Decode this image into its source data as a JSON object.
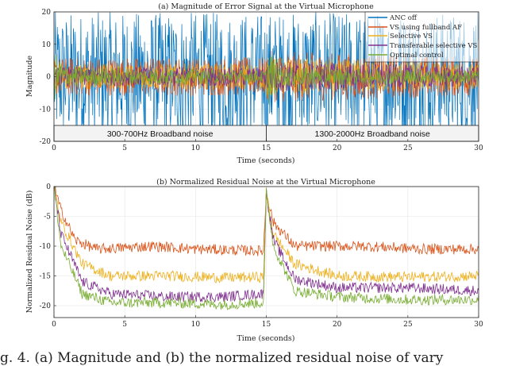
{
  "chart_data": [
    {
      "type": "line",
      "title": "(a) Magnitude of Error Signal at the Virtual Microphone",
      "xlabel": "Time (seconds)",
      "ylabel": "Magnitude",
      "xlim": [
        0,
        30
      ],
      "ylim": [
        -20,
        20
      ],
      "xticks": [
        "0",
        "5",
        "10",
        "15",
        "20",
        "25",
        "30"
      ],
      "yticks": [
        "20",
        "10",
        "0",
        "-10",
        "-20"
      ],
      "grid": true,
      "legend_position": "top-right",
      "series": [
        {
          "name": "ANC off",
          "color": "#0072BD",
          "amplitude": [
            [
              0,
              20
            ],
            [
              15,
              20
            ],
            [
              15.01,
              20
            ],
            [
              30,
              20
            ]
          ]
        },
        {
          "name": "VS using fullband AF",
          "color": "#D95319",
          "amplitude": [
            [
              0,
              6
            ],
            [
              15,
              6
            ],
            [
              15.01,
              8
            ],
            [
              30,
              6
            ]
          ]
        },
        {
          "name": "Selective VS",
          "color": "#EDB120",
          "amplitude": [
            [
              0,
              4
            ],
            [
              15,
              4
            ],
            [
              15.01,
              6
            ],
            [
              30,
              4
            ]
          ]
        },
        {
          "name": "Transferable selective VS",
          "color": "#7E2F8E",
          "amplitude": [
            [
              0,
              3
            ],
            [
              15,
              3
            ],
            [
              15.01,
              5
            ],
            [
              30,
              3
            ]
          ]
        },
        {
          "name": "Optimal control",
          "color": "#77AC30",
          "amplitude": [
            [
              0,
              8
            ],
            [
              1,
              3
            ],
            [
              15,
              2
            ],
            [
              15.01,
              10
            ],
            [
              16,
              3
            ],
            [
              30,
              2
            ]
          ]
        }
      ],
      "annotations": [
        {
          "text": "300-700Hz Broadband noise",
          "x_range": [
            0,
            15
          ]
        },
        {
          "text": "1300-2000Hz Broadband noise",
          "x_range": [
            15,
            30
          ]
        }
      ]
    },
    {
      "type": "line",
      "title": "(b) Normalized Residual Noise at the Virtual Microphone",
      "xlabel": "Time (seconds)",
      "ylabel": "Normalized Residual Noise (dB)",
      "xlim": [
        0,
        30
      ],
      "ylim": [
        -22,
        0
      ],
      "xticks": [
        "0",
        "5",
        "10",
        "15",
        "20",
        "25",
        "30"
      ],
      "yticks": [
        "0",
        "-5",
        "-10",
        "-15",
        "-20"
      ],
      "grid": true,
      "series": [
        {
          "name": "VS using fullband AF",
          "color": "#D95319",
          "points": [
            [
              0,
              0
            ],
            [
              0.5,
              -4
            ],
            [
              1.5,
              -9
            ],
            [
              3,
              -10.5
            ],
            [
              7,
              -10
            ],
            [
              10,
              -10.5
            ],
            [
              14.8,
              -10.8
            ],
            [
              15,
              -1
            ],
            [
              15.5,
              -6
            ],
            [
              17,
              -10
            ],
            [
              22,
              -10
            ],
            [
              26,
              -10.5
            ],
            [
              30,
              -10.5
            ]
          ]
        },
        {
          "name": "Selective VS",
          "color": "#EDB120",
          "points": [
            [
              0,
              0
            ],
            [
              0.5,
              -6
            ],
            [
              2,
              -13
            ],
            [
              4,
              -15
            ],
            [
              8,
              -15
            ],
            [
              12,
              -15.3
            ],
            [
              14.8,
              -15.2
            ],
            [
              15,
              -1
            ],
            [
              15.5,
              -8
            ],
            [
              17,
              -13
            ],
            [
              20,
              -15
            ],
            [
              25,
              -15.2
            ],
            [
              30,
              -15
            ]
          ]
        },
        {
          "name": "Transferable selective VS",
          "color": "#7E2F8E",
          "points": [
            [
              0,
              0
            ],
            [
              0.5,
              -8
            ],
            [
              2,
              -16
            ],
            [
              4,
              -18
            ],
            [
              8,
              -18.5
            ],
            [
              12,
              -18.5
            ],
            [
              14.8,
              -18
            ],
            [
              15,
              -1
            ],
            [
              15.5,
              -9
            ],
            [
              17,
              -15.5
            ],
            [
              20,
              -17
            ],
            [
              25,
              -17
            ],
            [
              30,
              -17.5
            ]
          ]
        },
        {
          "name": "Optimal control",
          "color": "#77AC30",
          "points": [
            [
              0,
              0
            ],
            [
              0.5,
              -10
            ],
            [
              2,
              -18
            ],
            [
              4,
              -19.5
            ],
            [
              8,
              -19.5
            ],
            [
              12,
              -19.8
            ],
            [
              14.8,
              -19.5
            ],
            [
              15,
              -1
            ],
            [
              15.5,
              -10
            ],
            [
              17,
              -17.5
            ],
            [
              20,
              -18.5
            ],
            [
              25,
              -19
            ],
            [
              30,
              -19
            ]
          ]
        }
      ]
    }
  ],
  "caption": "g. 4.   (a) Magnitude and (b) the normalized residual noise of vary"
}
